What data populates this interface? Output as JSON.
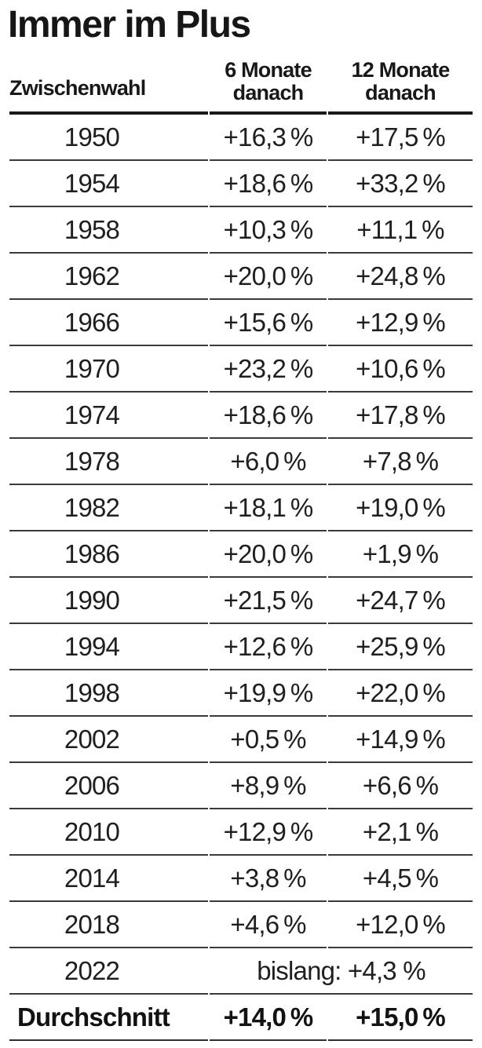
{
  "title": "Immer im Plus",
  "table": {
    "header": {
      "col1": "Zwischenwahl",
      "col2_line1": "6 Monate",
      "col2_line2": "danach",
      "col3_line1": "12 Monate",
      "col3_line2": "danach"
    },
    "rows": [
      {
        "year": "1950",
        "m6": "+16,3 %",
        "m12": "+17,5 %"
      },
      {
        "year": "1954",
        "m6": "+18,6 %",
        "m12": "+33,2 %"
      },
      {
        "year": "1958",
        "m6": "+10,3 %",
        "m12": "+11,1 %"
      },
      {
        "year": "1962",
        "m6": "+20,0 %",
        "m12": "+24,8 %"
      },
      {
        "year": "1966",
        "m6": "+15,6 %",
        "m12": "+12,9 %"
      },
      {
        "year": "1970",
        "m6": "+23,2 %",
        "m12": "+10,6 %"
      },
      {
        "year": "1974",
        "m6": "+18,6 %",
        "m12": "+17,8 %"
      },
      {
        "year": "1978",
        "m6": "+6,0 %",
        "m12": "+7,8 %"
      },
      {
        "year": "1982",
        "m6": "+18,1 %",
        "m12": "+19,0 %"
      },
      {
        "year": "1986",
        "m6": "+20,0 %",
        "m12": "+1,9 %"
      },
      {
        "year": "1990",
        "m6": "+21,5 %",
        "m12": "+24,7 %"
      },
      {
        "year": "1994",
        "m6": "+12,6 %",
        "m12": "+25,9 %"
      },
      {
        "year": "1998",
        "m6": "+19,9 %",
        "m12": "+22,0 %"
      },
      {
        "year": "2002",
        "m6": "+0,5 %",
        "m12": "+14,9 %"
      },
      {
        "year": "2006",
        "m6": "+8,9 %",
        "m12": "+6,6 %"
      },
      {
        "year": "2010",
        "m6": "+12,9 %",
        "m12": "+2,1 %"
      },
      {
        "year": "2014",
        "m6": "+3,8 %",
        "m12": "+4,5 %"
      },
      {
        "year": "2018",
        "m6": "+4,6 %",
        "m12": "+12,0 %"
      },
      {
        "year": "2022",
        "note": "bislang: +4,3 %"
      }
    ],
    "footer": {
      "label": "Durchschnitt",
      "m6": "+14,0 %",
      "m12": "+15,0 %"
    }
  },
  "chart_data": {
    "type": "table",
    "title": "Immer im Plus",
    "columns": [
      "Zwischenwahl",
      "6 Monate danach",
      "12 Monate danach"
    ],
    "x": [
      1950,
      1954,
      1958,
      1962,
      1966,
      1970,
      1974,
      1978,
      1982,
      1986,
      1990,
      1994,
      1998,
      2002,
      2006,
      2010,
      2014,
      2018
    ],
    "series": [
      {
        "name": "6 Monate danach",
        "values": [
          16.3,
          18.6,
          10.3,
          20.0,
          15.6,
          23.2,
          18.6,
          6.0,
          18.1,
          20.0,
          21.5,
          12.6,
          19.9,
          0.5,
          8.9,
          12.9,
          3.8,
          4.6
        ]
      },
      {
        "name": "12 Monate danach",
        "values": [
          17.5,
          33.2,
          11.1,
          24.8,
          12.9,
          10.6,
          17.8,
          7.8,
          19.0,
          1.9,
          24.7,
          25.9,
          22.0,
          14.9,
          6.6,
          2.1,
          4.5,
          12.0
        ]
      }
    ],
    "annotations": [
      "2022 bislang: +4,3 %"
    ],
    "average": {
      "6 Monate danach": 14.0,
      "12 Monate danach": 15.0
    },
    "units": "percent change",
    "layout": {
      "grid": "horizontal rules only",
      "legend": "none"
    }
  },
  "colors": {
    "text": "#1a1a1a",
    "thick_rule": "#191919",
    "thin_rule": "#3a3a3a",
    "background": "#ffffff"
  }
}
